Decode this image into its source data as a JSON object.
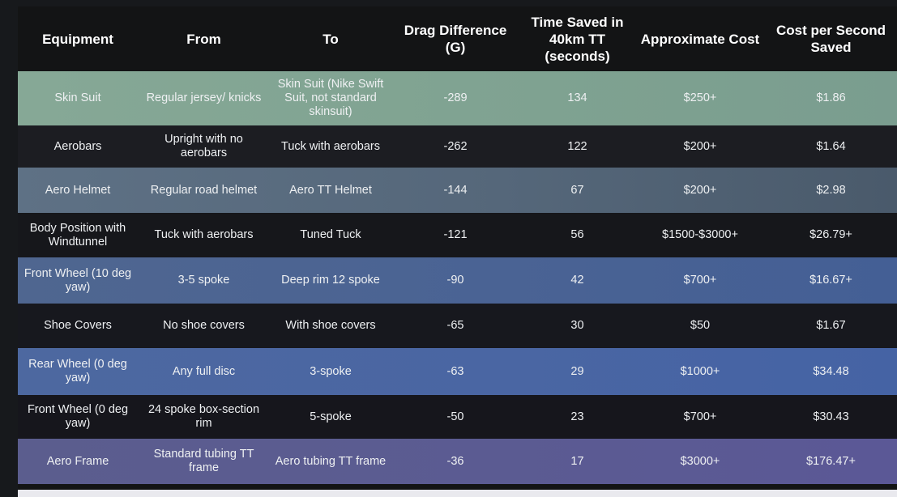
{
  "table": {
    "headers": [
      "Equipment",
      "From",
      "To",
      "Drag Difference (G)",
      "Time Saved in 40km TT (seconds)",
      "Approximate Cost",
      "Cost per Second Saved"
    ],
    "rows": [
      [
        "Skin Suit",
        "Regular jersey/ knicks",
        "Skin Suit (Nike Swift Suit, not standard skinsuit)",
        "-289",
        "134",
        "$250+",
        "$1.86"
      ],
      [
        "Aerobars",
        "Upright with no aerobars",
        "Tuck with aerobars",
        "-262",
        "122",
        "$200+",
        "$1.64"
      ],
      [
        "Aero Helmet",
        "Regular road helmet",
        "Aero TT Helmet",
        "-144",
        "67",
        "$200+",
        "$2.98"
      ],
      [
        "Body Position with Windtunnel",
        "Tuck with aerobars",
        "Tuned Tuck",
        "-121",
        "56",
        "$1500-$3000+",
        "$26.79+"
      ],
      [
        "Front Wheel (10 deg yaw)",
        "3-5 spoke",
        "Deep rim 12 spoke",
        "-90",
        "42",
        "$700+",
        "$16.67+"
      ],
      [
        "Shoe Covers",
        "No shoe covers",
        "With shoe covers",
        "-65",
        "30",
        "$50",
        "$1.67"
      ],
      [
        "Rear Wheel (0 deg yaw)",
        "Any full disc",
        "3-spoke",
        "-63",
        "29",
        "$1000+",
        "$34.48"
      ],
      [
        "Front Wheel (0 deg yaw)",
        "24 spoke box-section rim",
        "5-spoke",
        "-50",
        "23",
        "$700+",
        "$30.43"
      ],
      [
        "Aero Frame",
        "Standard tubing TT frame",
        "Aero tubing TT frame",
        "-36",
        "17",
        "$3000+",
        "$176.47+"
      ]
    ]
  }
}
